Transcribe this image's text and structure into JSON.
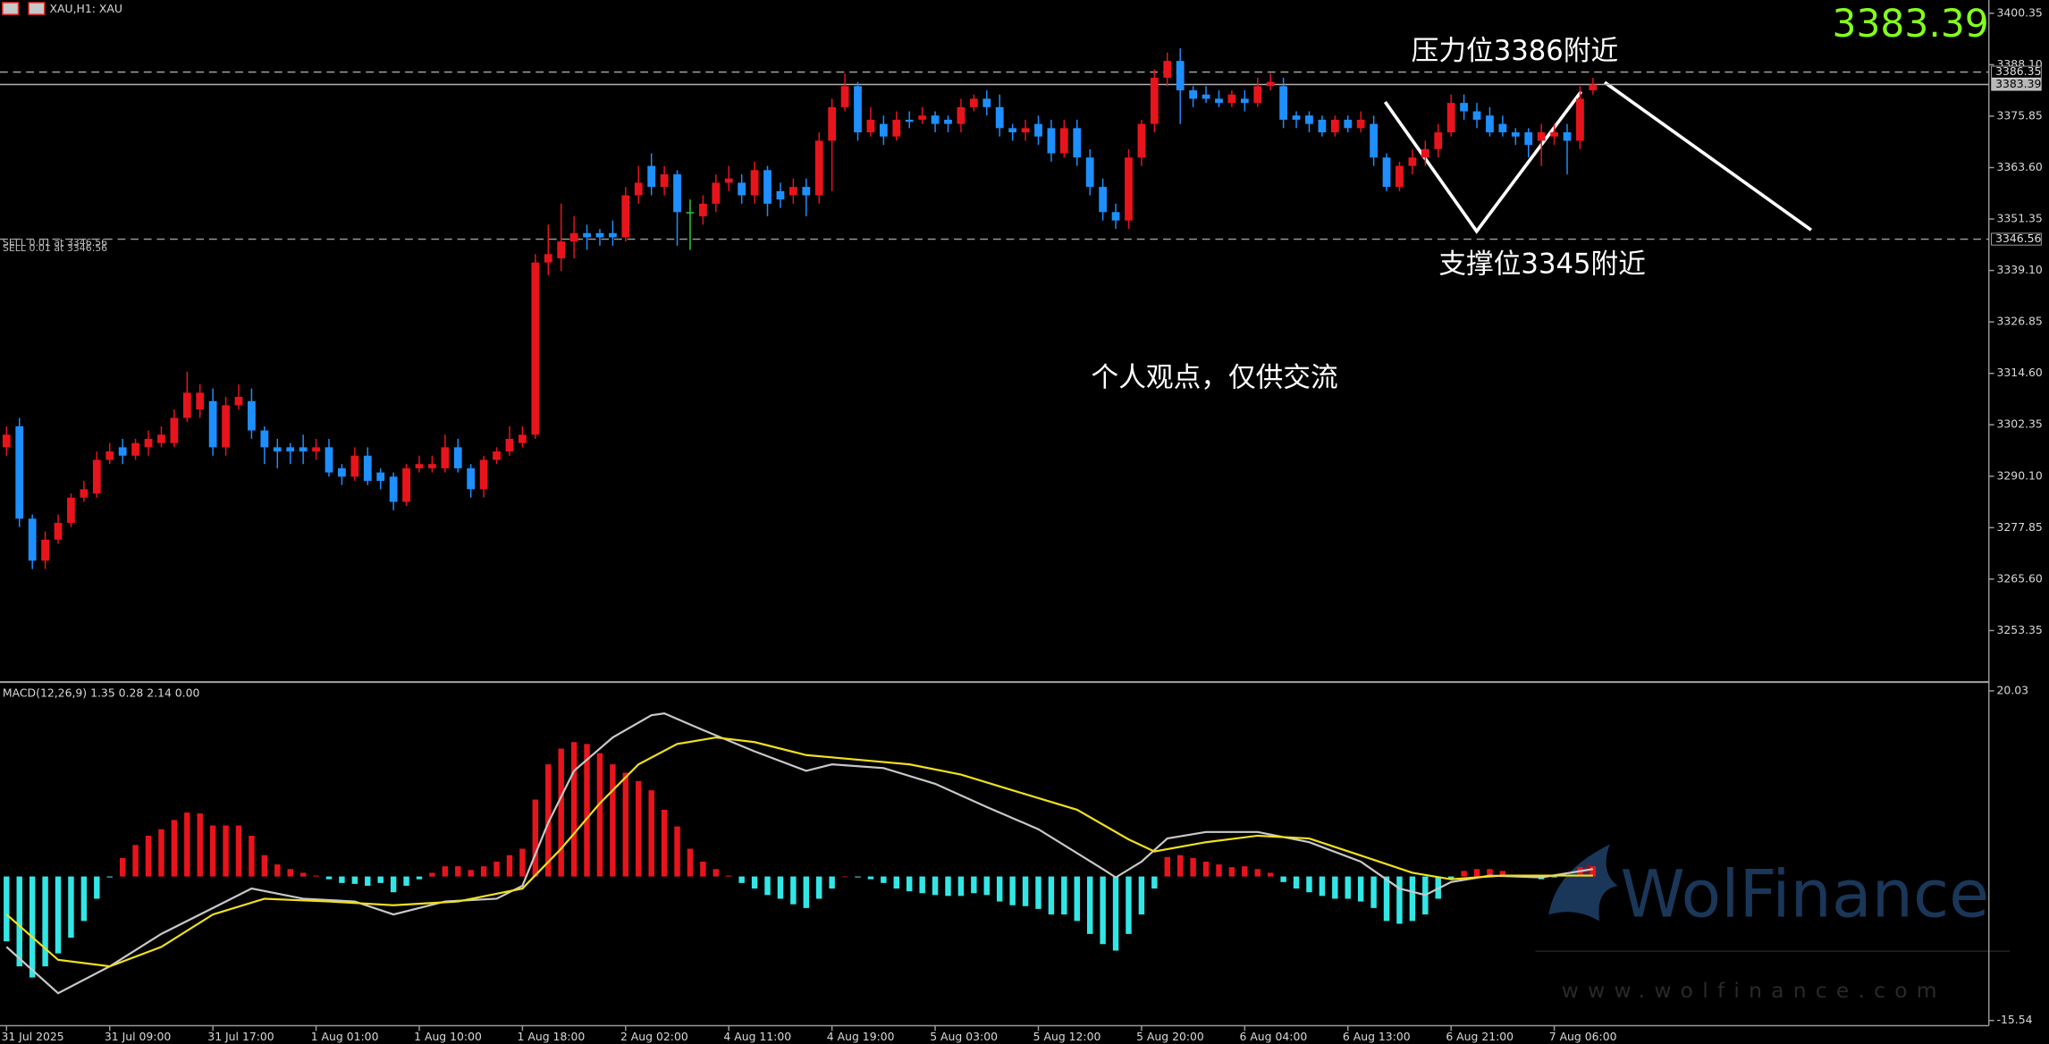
{
  "chart_data": [
    {
      "type": "candlestick",
      "title": "XAU,H1: XAU",
      "categories": [
        "31 Jul 2025",
        null,
        null,
        null,
        null,
        null,
        null,
        null,
        "31 Jul 09:00",
        null,
        null,
        null,
        null,
        null,
        null,
        null,
        "31 Jul 17:00",
        null,
        null,
        null,
        null,
        null,
        null,
        null,
        "1 Aug 01:00",
        null,
        null,
        null,
        null,
        null,
        null,
        null,
        "1 Aug 10:00",
        null,
        null,
        null,
        null,
        null,
        null,
        null,
        "1 Aug 18:00",
        null,
        null,
        null,
        null,
        null,
        null,
        null,
        "2 Aug 02:00",
        null,
        null,
        null,
        null,
        null,
        null,
        null,
        "4 Aug 11:00",
        null,
        null,
        null,
        null,
        null,
        null,
        null,
        "4 Aug 19:00",
        null,
        null,
        null,
        null,
        null,
        null,
        null,
        "5 Aug 03:00",
        null,
        null,
        null,
        null,
        null,
        null,
        null,
        "5 Aug 12:00",
        null,
        null,
        null,
        null,
        null,
        null,
        null,
        "5 Aug 20:00",
        null,
        null,
        null,
        null,
        null,
        null,
        null,
        "6 Aug 04:00",
        null,
        null,
        null,
        null,
        null,
        null,
        null,
        "6 Aug 13:00",
        null,
        null,
        null,
        null,
        null,
        null,
        null,
        "6 Aug 21:00",
        null,
        null,
        null,
        null,
        null,
        null,
        null,
        "7 Aug 06:00",
        null,
        null,
        null
      ],
      "candles": [
        [
          3297,
          3302,
          3295,
          3300
        ],
        [
          3302,
          3304,
          3278,
          3280
        ],
        [
          3280,
          3281,
          3268,
          3270
        ],
        [
          3270,
          3277,
          3268,
          3275
        ],
        [
          3275,
          3281,
          3274,
          3279
        ],
        [
          3279,
          3286,
          3278,
          3285
        ],
        [
          3285,
          3289,
          3284,
          3287
        ],
        [
          3286,
          3296,
          3285,
          3294
        ],
        [
          3294,
          3298,
          3293,
          3296
        ],
        [
          3297,
          3299,
          3293,
          3295
        ],
        [
          3295,
          3299,
          3294,
          3298
        ],
        [
          3297,
          3301,
          3295,
          3299
        ],
        [
          3298,
          3302,
          3297,
          3300
        ],
        [
          3298,
          3306,
          3297,
          3304
        ],
        [
          3304,
          3315,
          3303,
          3310
        ],
        [
          3306,
          3312,
          3304,
          3310
        ],
        [
          3308,
          3311,
          3295,
          3297
        ],
        [
          3297,
          3309,
          3295,
          3307
        ],
        [
          3307,
          3312,
          3306,
          3309
        ],
        [
          3308,
          3311,
          3299,
          3301
        ],
        [
          3301,
          3302,
          3293,
          3297
        ],
        [
          3297,
          3299,
          3292,
          3296
        ],
        [
          3297,
          3298,
          3293,
          3296
        ],
        [
          3297,
          3300,
          3293,
          3296
        ],
        [
          3296,
          3299,
          3294,
          3297
        ],
        [
          3297,
          3299,
          3290,
          3291
        ],
        [
          3292,
          3293,
          3288,
          3290
        ],
        [
          3290,
          3297,
          3289,
          3295
        ],
        [
          3295,
          3297,
          3288,
          3289
        ],
        [
          3291,
          3292,
          3287,
          3289
        ],
        [
          3290,
          3291,
          3282,
          3284
        ],
        [
          3284,
          3293,
          3283,
          3292
        ],
        [
          3292,
          3295,
          3291,
          3293
        ],
        [
          3292,
          3295,
          3291,
          3293
        ],
        [
          3292,
          3300,
          3291,
          3297
        ],
        [
          3297,
          3299,
          3291,
          3292
        ],
        [
          3292,
          3293,
          3285,
          3287
        ],
        [
          3287,
          3295,
          3285,
          3294
        ],
        [
          3294,
          3297,
          3293,
          3296
        ],
        [
          3296,
          3302,
          3295,
          3299
        ],
        [
          3298,
          3302,
          3297,
          3300
        ],
        [
          3300,
          3343,
          3299,
          3341
        ],
        [
          3341,
          3350,
          3338,
          3343
        ],
        [
          3342,
          3355,
          3339,
          3346
        ],
        [
          3346,
          3352,
          3342,
          3348
        ],
        [
          3348,
          3350,
          3344,
          3347
        ],
        [
          3348,
          3349,
          3345,
          3347
        ],
        [
          3348,
          3351,
          3345,
          3347
        ],
        [
          3347,
          3359,
          3346,
          3357
        ],
        [
          3357,
          3364,
          3355,
          3360
        ],
        [
          3364,
          3367,
          3357,
          3359
        ],
        [
          3359,
          3364,
          3357,
          3362
        ],
        [
          3362,
          3363,
          3345,
          3353
        ],
        [
          3353,
          3356,
          3344,
          3353
        ],
        [
          3352,
          3357,
          3350,
          3355
        ],
        [
          3355,
          3362,
          3353,
          3360
        ],
        [
          3360,
          3364,
          3358,
          3361
        ],
        [
          3360,
          3362,
          3355,
          3357
        ],
        [
          3357,
          3365,
          3355,
          3363
        ],
        [
          3363,
          3364,
          3352,
          3355
        ],
        [
          3358,
          3360,
          3354,
          3356
        ],
        [
          3357,
          3361,
          3355,
          3359
        ],
        [
          3359,
          3361,
          3352,
          3357
        ],
        [
          3357,
          3372,
          3355,
          3370
        ],
        [
          3370,
          3380,
          3358,
          3378
        ],
        [
          3378,
          3386,
          3377,
          3383
        ],
        [
          3383,
          3384,
          3370,
          3372
        ],
        [
          3372,
          3378,
          3371,
          3375
        ],
        [
          3374,
          3376,
          3369,
          3371
        ],
        [
          3371,
          3377,
          3370,
          3375
        ],
        [
          3375,
          3377,
          3373,
          3374.5
        ],
        [
          3375,
          3378,
          3374,
          3376
        ],
        [
          3376,
          3377,
          3372,
          3374
        ],
        [
          3375,
          3376,
          3372,
          3374
        ],
        [
          3374,
          3380,
          3372,
          3378
        ],
        [
          3378,
          3381,
          3377,
          3380
        ],
        [
          3380,
          3382,
          3376,
          3378
        ],
        [
          3378,
          3381,
          3371,
          3373
        ],
        [
          3373,
          3374,
          3370,
          3372
        ],
        [
          3372,
          3375,
          3370,
          3373
        ],
        [
          3374,
          3376,
          3369,
          3371
        ],
        [
          3373,
          3375,
          3365,
          3367
        ],
        [
          3367,
          3375,
          3366,
          3373
        ],
        [
          3373,
          3375,
          3364,
          3366
        ],
        [
          3366,
          3368,
          3357,
          3359
        ],
        [
          3359,
          3361,
          3351,
          3353
        ],
        [
          3353,
          3355,
          3349,
          3351
        ],
        [
          3351,
          3368,
          3349,
          3366
        ],
        [
          3366,
          3375,
          3364,
          3374
        ],
        [
          3374,
          3387,
          3372,
          3385
        ],
        [
          3385,
          3391,
          3383,
          3389
        ],
        [
          3389,
          3392,
          3374,
          3382
        ],
        [
          3382,
          3383,
          3378,
          3380
        ],
        [
          3381,
          3383,
          3379,
          3380
        ],
        [
          3380,
          3382,
          3378,
          3379
        ],
        [
          3379,
          3382,
          3378,
          3381
        ],
        [
          3380,
          3382,
          3377,
          3379
        ],
        [
          3379,
          3385,
          3378,
          3383
        ],
        [
          3383,
          3386,
          3382,
          3384
        ],
        [
          3383,
          3385,
          3373,
          3375
        ],
        [
          3376,
          3377,
          3373,
          3375
        ],
        [
          3376,
          3377,
          3372,
          3374
        ],
        [
          3375,
          3376,
          3371,
          3372
        ],
        [
          3372,
          3376,
          3371,
          3375
        ],
        [
          3375,
          3376,
          3372,
          3373
        ],
        [
          3373,
          3377,
          3372,
          3375
        ],
        [
          3374,
          3376,
          3364,
          3366
        ],
        [
          3366,
          3367,
          3358,
          3359
        ],
        [
          3359,
          3365,
          3358,
          3364
        ],
        [
          3364,
          3368,
          3362,
          3366
        ],
        [
          3366,
          3370,
          3364,
          3368
        ],
        [
          3368,
          3374,
          3366,
          3372
        ],
        [
          3372,
          3381,
          3371,
          3379
        ],
        [
          3379,
          3381,
          3375,
          3377
        ],
        [
          3377,
          3379,
          3373,
          3375
        ],
        [
          3376,
          3378,
          3371,
          3372
        ],
        [
          3374,
          3376,
          3371,
          3372
        ],
        [
          3372,
          3373,
          3369,
          3371
        ],
        [
          3372,
          3373,
          3366,
          3369
        ],
        [
          3370,
          3374,
          3364,
          3372
        ],
        [
          3371,
          3374,
          3369,
          3372
        ],
        [
          3372,
          3374,
          3362,
          3370
        ],
        [
          3370,
          3383,
          3368,
          3380
        ],
        [
          3382,
          3385,
          3381,
          3383.39
        ]
      ],
      "colors": {
        "up": "#e8141c",
        "down": "#1e8fff",
        "flat": "#2ecc40"
      },
      "ylim": [
        3241.4,
        3403.5
      ],
      "yticks": [
        3400.35,
        {
          "value": 3388.1,
          "label": "3388.10"
        },
        3375.85,
        {
          "value": 3363.6,
          "label": "3363.60"
        },
        3351.35,
        {
          "value": 3339.1,
          "label": "3339.10"
        },
        3326.85,
        {
          "value": 3314.6,
          "label": "3314.60"
        },
        3302.35,
        {
          "value": 3290.1,
          "label": "3290.10"
        },
        3277.85,
        {
          "value": 3265.6,
          "label": "3265.60"
        },
        3253.35
      ],
      "ask": 3386.35,
      "bid": 3383.39,
      "order_price": 3346.56,
      "order_label": "SELL 0.01 at 3346.56",
      "annotations": [
        "压力位3386附近",
        "支撑位3345附近",
        "个人观点，仅供交流"
      ]
    },
    {
      "type": "macd",
      "title": "MACD(12,26,9) 1.35 0.28 2.14 0.00",
      "ylim": [
        -16.1,
        20.7
      ],
      "yticks": [
        20.03,
        -15.54
      ],
      "histogram": {
        "up_color": "#e8141c",
        "down_color": "#33e6e6",
        "values": [
          -7,
          -9.7,
          -10.9,
          -9.7,
          -8.3,
          -6.6,
          -4.8,
          -2.4,
          -0.1,
          2.0,
          3.4,
          4.4,
          5.1,
          6.1,
          6.9,
          6.8,
          5.5,
          5.5,
          5.5,
          4.4,
          2.3,
          1.3,
          0.8,
          0.4,
          0.1,
          -0.3,
          -0.7,
          -0.8,
          -1.0,
          -0.7,
          -1.7,
          -1.0,
          -0.3,
          0.4,
          1.1,
          1.1,
          0.7,
          1.1,
          1.6,
          2.3,
          3.0,
          8.3,
          12.1,
          13.8,
          14.5,
          14.3,
          13.3,
          12.1,
          11.2,
          10.3,
          9.3,
          7.2,
          5.4,
          3.0,
          1.6,
          0.8,
          0.1,
          -0.7,
          -1.3,
          -2.0,
          -2.4,
          -3.0,
          -3.4,
          -2.4,
          -1.3,
          0,
          -0.1,
          -0.3,
          -0.7,
          -1.3,
          -1.6,
          -1.8,
          -2.0,
          -2.1,
          -2.1,
          -1.8,
          -2.0,
          -2.7,
          -3.1,
          -3.2,
          -3.5,
          -4.1,
          -4.1,
          -4.8,
          -6.2,
          -7.3,
          -8.0,
          -6.2,
          -4.1,
          -1.3,
          2.1,
          2.3,
          2.0,
          1.6,
          1.3,
          1.0,
          1.1,
          0.8,
          0.4,
          -0.6,
          -1.3,
          -1.7,
          -2.1,
          -2.4,
          -2.4,
          -2.7,
          -3.4,
          -4.8,
          -5.1,
          -4.8,
          -4.1,
          -2.4,
          -0.3,
          0.6,
          0.8,
          0.8,
          0.6,
          0.1,
          -0.1,
          -0.3,
          -0.1,
          0.1,
          1.0,
          1.1
        ]
      },
      "series": [
        {
          "color": "#c8c8c8",
          "x": [
            0,
            4,
            8,
            12,
            16,
            19,
            23,
            27,
            30,
            34,
            38,
            40,
            42,
            44,
            47,
            50,
            51,
            54,
            58,
            62,
            64,
            68,
            72,
            76,
            80,
            85,
            86,
            88,
            90,
            93,
            97,
            101,
            105,
            108,
            110,
            112,
            115,
            119,
            123
          ],
          "values": [
            -7.6,
            -12.6,
            -9.7,
            -6.2,
            -3.4,
            -1.3,
            -2.4,
            -2.7,
            -4.1,
            -2.7,
            -2.4,
            -1.0,
            5.8,
            11.4,
            15.0,
            17.4,
            17.6,
            15.8,
            13.5,
            11.4,
            12.1,
            11.7,
            10.0,
            7.5,
            5.1,
            0.8,
            -0.1,
            1.6,
            4.1,
            4.8,
            4.8,
            3.7,
            1.6,
            -1.3,
            -2.0,
            -0.6,
            0.1,
            -0.1,
            0.8
          ]
        },
        {
          "color": "#f0e01e",
          "x": [
            0,
            4,
            8,
            12,
            16,
            20,
            25,
            30,
            35,
            40,
            43,
            46,
            49,
            52,
            55,
            58,
            62,
            66,
            70,
            74,
            78,
            83,
            87,
            89,
            93,
            97,
            101,
            106,
            109,
            112,
            116,
            123
          ],
          "values": [
            -4.1,
            -9.0,
            -9.7,
            -7.6,
            -4.1,
            -2.4,
            -2.7,
            -3.1,
            -2.7,
            -1.3,
            3.0,
            7.9,
            12.1,
            14.3,
            15.0,
            14.5,
            13.1,
            12.6,
            12.1,
            11.0,
            9.3,
            7.2,
            4.0,
            2.7,
            3.7,
            4.4,
            4.1,
            1.8,
            0.4,
            -0.3,
            0.1,
            0.1
          ]
        }
      ]
    }
  ],
  "watermark": {
    "brand": "WolFinance",
    "url": "www.wolfinance.com"
  }
}
